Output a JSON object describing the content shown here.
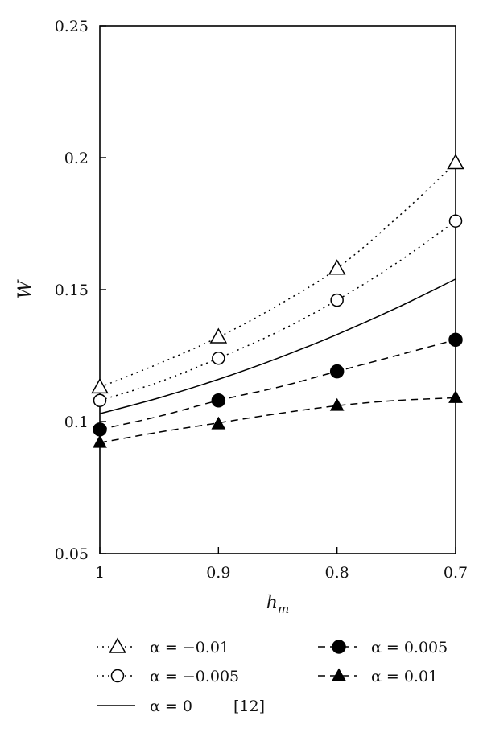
{
  "chart_data": {
    "type": "line",
    "title": "",
    "xlabel": "h",
    "xlabel_sub": "m",
    "ylabel": "W",
    "xlim": [
      1.0,
      0.7
    ],
    "ylim": [
      0.05,
      0.25
    ],
    "x_reversed": true,
    "x_ticks": [
      {
        "value": 1.0,
        "label": "1"
      },
      {
        "value": 0.9,
        "label": "0.9"
      },
      {
        "value": 0.8,
        "label": "0.8"
      },
      {
        "value": 0.7,
        "label": "0.7"
      }
    ],
    "y_ticks": [
      {
        "value": 0.05,
        "label": "0.05"
      },
      {
        "value": 0.1,
        "label": "0.1"
      },
      {
        "value": 0.15,
        "label": "0.15"
      },
      {
        "value": 0.2,
        "label": "0.2"
      },
      {
        "value": 0.25,
        "label": "0.25"
      }
    ],
    "grid": false,
    "legend_position": "bottom",
    "series": [
      {
        "name": "α = −0.01",
        "line_style": "dotted",
        "marker": "open-triangle",
        "x": [
          1.0,
          0.9,
          0.8,
          0.7
        ],
        "values": [
          0.113,
          0.132,
          0.158,
          0.198
        ],
        "curve_x": [
          1.0,
          0.95,
          0.9,
          0.85,
          0.8,
          0.75,
          0.7
        ],
        "curve_values": [
          0.113,
          0.122,
          0.132,
          0.144,
          0.158,
          0.177,
          0.198
        ]
      },
      {
        "name": "α = −0.005",
        "line_style": "dotted",
        "marker": "open-circle",
        "x": [
          1.0,
          0.9,
          0.8,
          0.7
        ],
        "values": [
          0.108,
          0.124,
          0.146,
          0.176
        ],
        "curve_x": [
          1.0,
          0.95,
          0.9,
          0.85,
          0.8,
          0.75,
          0.7
        ],
        "curve_values": [
          0.108,
          0.115,
          0.124,
          0.134,
          0.146,
          0.16,
          0.176
        ]
      },
      {
        "name": "α = 0",
        "label_suffix": "[12]",
        "line_style": "solid",
        "marker": "none",
        "curve_x": [
          1.0,
          0.95,
          0.9,
          0.85,
          0.8,
          0.75,
          0.7
        ],
        "curve_values": [
          0.103,
          0.109,
          0.116,
          0.124,
          0.133,
          0.143,
          0.154
        ]
      },
      {
        "name": "α = 0.005",
        "line_style": "dashed",
        "marker": "filled-circle",
        "x": [
          1.0,
          0.9,
          0.8,
          0.7
        ],
        "values": [
          0.097,
          0.108,
          0.119,
          0.131
        ],
        "curve_x": [
          1.0,
          0.95,
          0.9,
          0.85,
          0.8,
          0.75,
          0.7
        ],
        "curve_values": [
          0.097,
          0.102,
          0.108,
          0.113,
          0.119,
          0.125,
          0.131
        ]
      },
      {
        "name": "α = 0.01",
        "line_style": "dashed",
        "marker": "filled-triangle",
        "x": [
          1.0,
          0.9,
          0.8,
          0.7
        ],
        "values": [
          0.092,
          0.099,
          0.106,
          0.109
        ],
        "curve_x": [
          1.0,
          0.95,
          0.9,
          0.85,
          0.8,
          0.75,
          0.7
        ],
        "curve_values": [
          0.092,
          0.096,
          0.0995,
          0.103,
          0.106,
          0.108,
          0.109
        ]
      }
    ]
  }
}
